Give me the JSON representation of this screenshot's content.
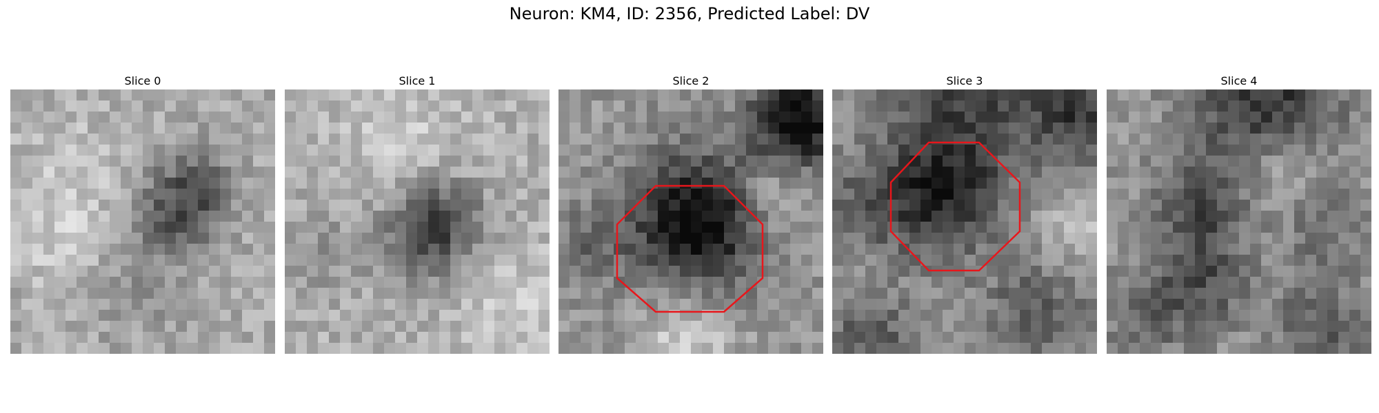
{
  "figure": {
    "title": "Neuron: KM4, ID: 2356, Predicted Label: DV",
    "outline_color": "#e8161b"
  },
  "slices": [
    {
      "label": "Slice 0",
      "has_outline": false
    },
    {
      "label": "Slice 1",
      "has_outline": false
    },
    {
      "label": "Slice 2",
      "has_outline": true
    },
    {
      "label": "Slice 3",
      "has_outline": true
    },
    {
      "label": "Slice 4",
      "has_outline": false
    }
  ]
}
